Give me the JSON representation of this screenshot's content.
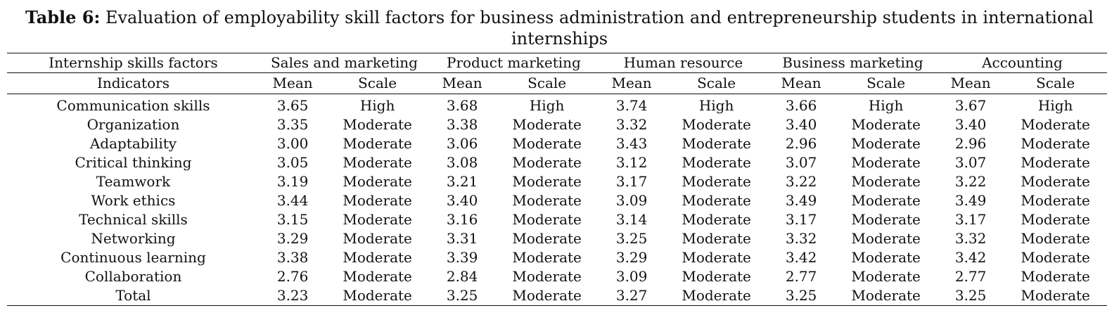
{
  "caption": {
    "label": "Table 6:",
    "text": "Evaluation of employability skill factors for business administration and entrepreneurship students in international internships"
  },
  "header": {
    "factor_label": "Internship skills factors",
    "indicator_label": "Indicators",
    "groups": [
      "Sales and marketing",
      "Product marketing",
      "Human resource",
      "Business marketing",
      "Accounting"
    ],
    "mean_label": "Mean",
    "scale_label": "Scale"
  },
  "rows": [
    {
      "name": "Communication skills",
      "cells": [
        [
          "3.65",
          "High"
        ],
        [
          "3.68",
          "High"
        ],
        [
          "3.74",
          "High"
        ],
        [
          "3.66",
          "High"
        ],
        [
          "3.67",
          "High"
        ]
      ]
    },
    {
      "name": "Organization",
      "cells": [
        [
          "3.35",
          "Moderate"
        ],
        [
          "3.38",
          "Moderate"
        ],
        [
          "3.32",
          "Moderate"
        ],
        [
          "3.40",
          "Moderate"
        ],
        [
          "3.40",
          "Moderate"
        ]
      ]
    },
    {
      "name": "Adaptability",
      "cells": [
        [
          "3.00",
          "Moderate"
        ],
        [
          "3.06",
          "Moderate"
        ],
        [
          "3.43",
          "Moderate"
        ],
        [
          "2.96",
          "Moderate"
        ],
        [
          "2.96",
          "Moderate"
        ]
      ]
    },
    {
      "name": "Critical thinking",
      "cells": [
        [
          "3.05",
          "Moderate"
        ],
        [
          "3.08",
          "Moderate"
        ],
        [
          "3.12",
          "Moderate"
        ],
        [
          "3.07",
          "Moderate"
        ],
        [
          "3.07",
          "Moderate"
        ]
      ]
    },
    {
      "name": "Teamwork",
      "cells": [
        [
          "3.19",
          "Moderate"
        ],
        [
          "3.21",
          "Moderate"
        ],
        [
          "3.17",
          "Moderate"
        ],
        [
          "3.22",
          "Moderate"
        ],
        [
          "3.22",
          "Moderate"
        ]
      ]
    },
    {
      "name": "Work ethics",
      "cells": [
        [
          "3.44",
          "Moderate"
        ],
        [
          "3.40",
          "Moderate"
        ],
        [
          "3.09",
          "Moderate"
        ],
        [
          "3.49",
          "Moderate"
        ],
        [
          "3.49",
          "Moderate"
        ]
      ]
    },
    {
      "name": "Technical skills",
      "cells": [
        [
          "3.15",
          "Moderate"
        ],
        [
          "3.16",
          "Moderate"
        ],
        [
          "3.14",
          "Moderate"
        ],
        [
          "3.17",
          "Moderate"
        ],
        [
          "3.17",
          "Moderate"
        ]
      ]
    },
    {
      "name": "Networking",
      "cells": [
        [
          "3.29",
          "Moderate"
        ],
        [
          "3.31",
          "Moderate"
        ],
        [
          "3.25",
          "Moderate"
        ],
        [
          "3.32",
          "Moderate"
        ],
        [
          "3.32",
          "Moderate"
        ]
      ]
    },
    {
      "name": "Continuous learning",
      "cells": [
        [
          "3.38",
          "Moderate"
        ],
        [
          "3.39",
          "Moderate"
        ],
        [
          "3.29",
          "Moderate"
        ],
        [
          "3.42",
          "Moderate"
        ],
        [
          "3.42",
          "Moderate"
        ]
      ]
    },
    {
      "name": "Collaboration",
      "cells": [
        [
          "2.76",
          "Moderate"
        ],
        [
          "2.84",
          "Moderate"
        ],
        [
          "3.09",
          "Moderate"
        ],
        [
          "2.77",
          "Moderate"
        ],
        [
          "2.77",
          "Moderate"
        ]
      ]
    },
    {
      "name": "Total",
      "cells": [
        [
          "3.23",
          "Moderate"
        ],
        [
          "3.25",
          "Moderate"
        ],
        [
          "3.27",
          "Moderate"
        ],
        [
          "3.25",
          "Moderate"
        ],
        [
          "3.25",
          "Moderate"
        ]
      ]
    }
  ]
}
